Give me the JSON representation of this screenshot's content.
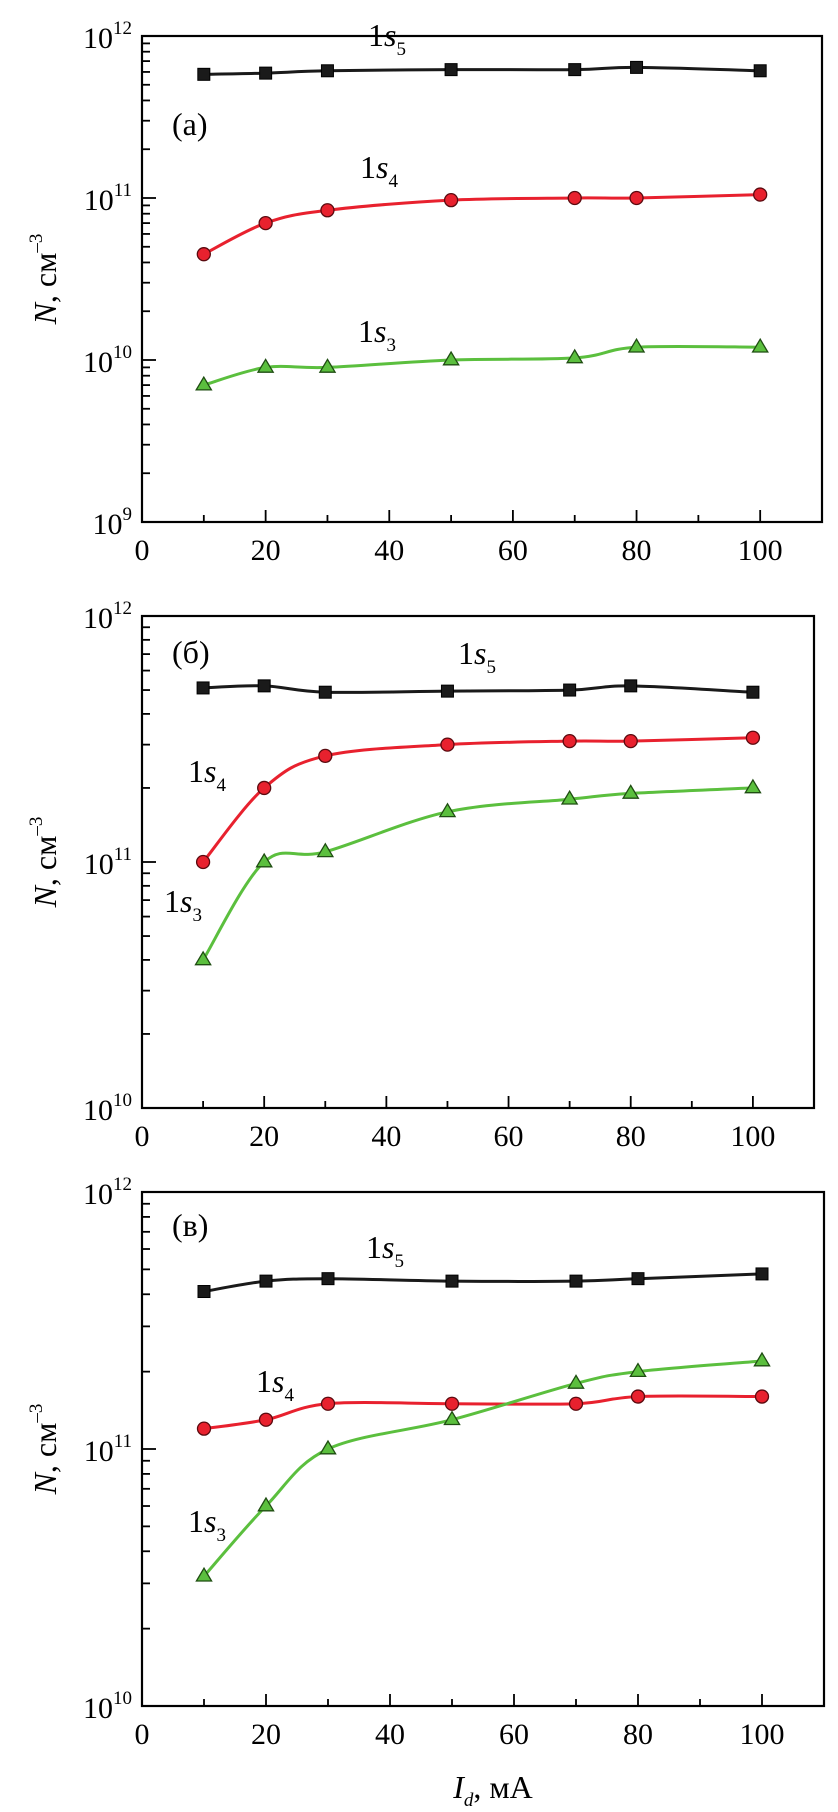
{
  "chart_data": [
    {
      "type": "line",
      "panel_label": "(a)",
      "xlim": [
        0,
        110
      ],
      "ylim": [
        1000000000.0,
        1000000000000.0
      ],
      "y_scale": "log",
      "x_ticks": [
        "0",
        "20",
        "40",
        "60",
        "80",
        "100"
      ],
      "y_ticks": [
        {
          "base": "10",
          "exp": "9"
        },
        {
          "base": "10",
          "exp": "10"
        },
        {
          "base": "10",
          "exp": "11"
        },
        {
          "base": "10",
          "exp": "12"
        }
      ],
      "ylabel": {
        "var": "N",
        "unit": ", см",
        "exp": "–3"
      },
      "series": [
        {
          "name": "1s5",
          "label_main": "1",
          "label_var": "s",
          "label_sub": "5",
          "color": "#1a1a1a",
          "marker": "square",
          "x": [
            10,
            20,
            30,
            50,
            70,
            80,
            100
          ],
          "values": [
            580000000000.0,
            590000000000.0,
            610000000000.0,
            620000000000.0,
            620000000000.0,
            640000000000.0,
            610000000000.0
          ]
        },
        {
          "name": "1s4",
          "label_main": "1",
          "label_var": "s",
          "label_sub": "4",
          "color": "#e8212e",
          "marker": "circle",
          "x": [
            10,
            20,
            30,
            50,
            70,
            80,
            100
          ],
          "values": [
            45000000000.0,
            70000000000.0,
            84000000000.0,
            97000000000.0,
            100000000000.0,
            100000000000.0,
            105000000000.0
          ]
        },
        {
          "name": "1s3",
          "label_main": "1",
          "label_var": "s",
          "label_sub": "3",
          "color": "#5bbf3e",
          "marker": "triangle",
          "x": [
            10,
            20,
            30,
            50,
            70,
            80,
            100
          ],
          "values": [
            7000000000.0,
            9000000000.0,
            9000000000.0,
            10000000000.0,
            10300000000.0,
            12000000000.0,
            12000000000.0
          ]
        }
      ]
    },
    {
      "type": "line",
      "panel_label": "(б)",
      "xlim": [
        0,
        110
      ],
      "ylim": [
        10000000000.0,
        1000000000000.0
      ],
      "y_scale": "log",
      "x_ticks": [
        "0",
        "20",
        "40",
        "60",
        "80",
        "100"
      ],
      "y_ticks": [
        {
          "base": "10",
          "exp": "10"
        },
        {
          "base": "10",
          "exp": "11"
        },
        {
          "base": "10",
          "exp": "12"
        }
      ],
      "ylabel": {
        "var": "N",
        "unit": ", см",
        "exp": "–3"
      },
      "series": [
        {
          "name": "1s5",
          "label_main": "1",
          "label_var": "s",
          "label_sub": "5",
          "color": "#1a1a1a",
          "marker": "square",
          "x": [
            10,
            20,
            30,
            50,
            70,
            80,
            100
          ],
          "values": [
            510000000000.0,
            520000000000.0,
            490000000000.0,
            495000000000.0,
            500000000000.0,
            520000000000.0,
            490000000000.0
          ]
        },
        {
          "name": "1s4",
          "label_main": "1",
          "label_var": "s",
          "label_sub": "4",
          "color": "#e8212e",
          "marker": "circle",
          "x": [
            10,
            20,
            30,
            50,
            70,
            80,
            100
          ],
          "values": [
            100000000000.0,
            200000000000.0,
            270000000000.0,
            300000000000.0,
            310000000000.0,
            310000000000.0,
            320000000000.0
          ]
        },
        {
          "name": "1s3",
          "label_main": "1",
          "label_var": "s",
          "label_sub": "3",
          "color": "#5bbf3e",
          "marker": "triangle",
          "x": [
            10,
            20,
            30,
            50,
            70,
            80,
            100
          ],
          "values": [
            40000000000.0,
            100000000000.0,
            110000000000.0,
            160000000000.0,
            180000000000.0,
            190000000000.0,
            200000000000.0
          ]
        }
      ]
    },
    {
      "type": "line",
      "panel_label": "(в)",
      "xlim": [
        0,
        110
      ],
      "ylim": [
        10000000000.0,
        1000000000000.0
      ],
      "y_scale": "log",
      "x_ticks": [
        "0",
        "20",
        "40",
        "60",
        "80",
        "100"
      ],
      "y_ticks": [
        {
          "base": "10",
          "exp": "10"
        },
        {
          "base": "10",
          "exp": "11"
        },
        {
          "base": "10",
          "exp": "12"
        }
      ],
      "ylabel": {
        "var": "N",
        "unit": ", см",
        "exp": "–3"
      },
      "xlabel": {
        "var": "I",
        "sub": "d",
        "unit": ", мА"
      },
      "series": [
        {
          "name": "1s5",
          "label_main": "1",
          "label_var": "s",
          "label_sub": "5",
          "color": "#1a1a1a",
          "marker": "square",
          "x": [
            10,
            20,
            30,
            50,
            70,
            80,
            100
          ],
          "values": [
            410000000000.0,
            450000000000.0,
            460000000000.0,
            450000000000.0,
            450000000000.0,
            460000000000.0,
            480000000000.0
          ]
        },
        {
          "name": "1s4",
          "label_main": "1",
          "label_var": "s",
          "label_sub": "4",
          "color": "#e8212e",
          "marker": "circle",
          "x": [
            10,
            20,
            30,
            50,
            70,
            80,
            100
          ],
          "values": [
            120000000000.0,
            130000000000.0,
            150000000000.0,
            150000000000.0,
            150000000000.0,
            160000000000.0,
            160000000000.0
          ]
        },
        {
          "name": "1s3",
          "label_main": "1",
          "label_var": "s",
          "label_sub": "3",
          "color": "#5bbf3e",
          "marker": "triangle",
          "x": [
            10,
            20,
            30,
            50,
            70,
            80,
            100
          ],
          "values": [
            32000000000.0,
            60000000000.0,
            100000000000.0,
            130000000000.0,
            180000000000.0,
            200000000000.0,
            220000000000.0
          ]
        }
      ]
    }
  ]
}
